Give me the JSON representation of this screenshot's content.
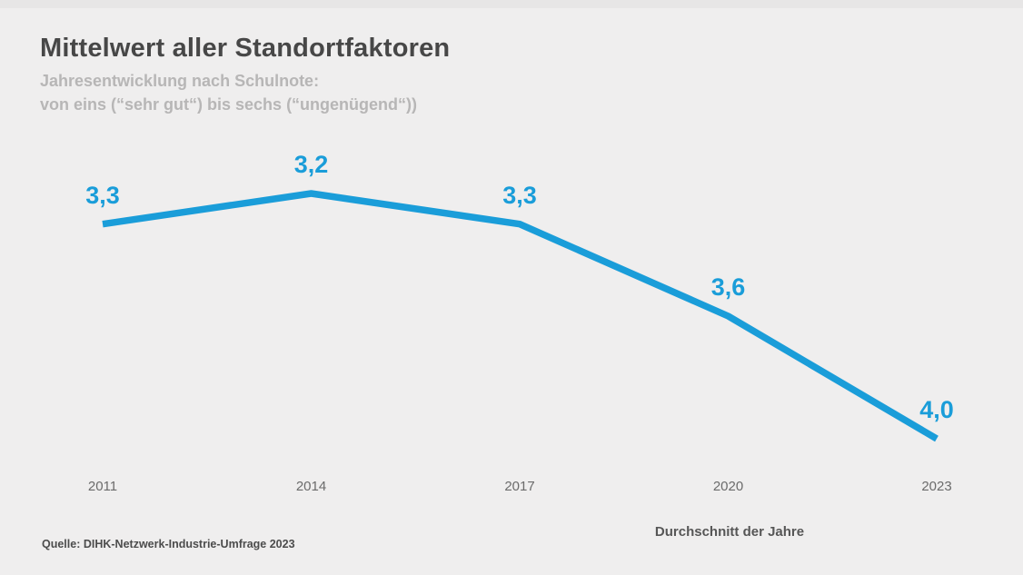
{
  "header": {
    "title": "Mittelwert aller Standortfaktoren",
    "subtitle_line1": "Jahresentwicklung nach Schulnote:",
    "subtitle_line2": "von eins (“sehr gut“) bis sechs (“ungenügend“))"
  },
  "footer": {
    "source": "Quelle: DIHK-Netzwerk-Industrie-Umfrage 2023"
  },
  "chart_data": {
    "type": "line",
    "title": "Mittelwert aller Standortfaktoren",
    "subtitle": "Jahresentwicklung nach Schulnote: von eins (“sehr gut“) bis sechs (“ungenügend“))",
    "categories": [
      "2011",
      "2014",
      "2017",
      "2020",
      "2023"
    ],
    "values": [
      3.3,
      3.2,
      3.3,
      3.6,
      4.0
    ],
    "value_labels": [
      "3,3",
      "3,2",
      "3,3",
      "3,6",
      "4,0"
    ],
    "xlabel": "Durchschnitt der Jahre",
    "ylabel": "",
    "ylim_note": "school grade scale 1 (sehr gut) to 6 (ungenügend), lower is better",
    "grid": false,
    "legend": "none",
    "line_color": "#1a9dd9",
    "label_color": "#1a9dd9",
    "background_color": "#efeeee"
  }
}
